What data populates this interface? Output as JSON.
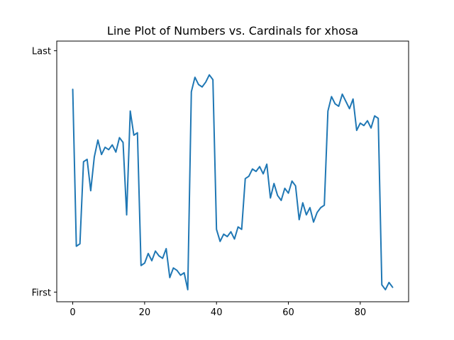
{
  "chart_data": {
    "type": "line",
    "title": "Line Plot of Numbers vs. Cardinals for xhosa",
    "xlabel": "",
    "ylabel": "",
    "xlim": [
      -4.45,
      93.45
    ],
    "ylim": [
      -0.04,
      1.04
    ],
    "x_ticks": [
      0,
      20,
      40,
      60,
      80
    ],
    "y_ticks": [
      {
        "value": 0,
        "label": "First"
      },
      {
        "value": 1,
        "label": "Last"
      }
    ],
    "grid": false,
    "color": "#1f77b4",
    "series": [
      {
        "x": [
          0,
          1,
          2,
          3,
          4,
          5,
          6,
          7,
          8,
          9,
          10,
          11,
          12,
          13,
          14,
          15,
          16,
          17,
          18,
          19,
          20,
          21,
          22,
          23,
          24,
          25,
          26,
          27,
          28,
          29,
          30,
          31,
          32,
          33,
          34,
          35,
          36,
          37,
          38,
          39,
          40,
          41,
          42,
          43,
          44,
          45,
          46,
          47,
          48,
          49,
          50,
          51,
          52,
          53,
          54,
          55,
          56,
          57,
          58,
          59,
          60,
          61,
          62,
          63,
          64,
          65,
          66,
          67,
          68,
          69,
          70,
          71,
          72,
          73,
          74,
          75,
          76,
          77,
          78,
          79,
          80,
          81,
          82,
          83,
          84,
          85,
          86,
          87,
          88,
          89
        ],
        "values": [
          0.84,
          0.19,
          0.2,
          0.54,
          0.55,
          0.42,
          0.56,
          0.63,
          0.57,
          0.6,
          0.59,
          0.61,
          0.58,
          0.64,
          0.62,
          0.32,
          0.75,
          0.65,
          0.66,
          0.11,
          0.12,
          0.16,
          0.13,
          0.17,
          0.15,
          0.14,
          0.18,
          0.06,
          0.1,
          0.09,
          0.07,
          0.08,
          0.01,
          0.83,
          0.89,
          0.86,
          0.85,
          0.87,
          0.9,
          0.88,
          0.26,
          0.21,
          0.24,
          0.23,
          0.25,
          0.22,
          0.27,
          0.26,
          0.47,
          0.48,
          0.51,
          0.5,
          0.52,
          0.49,
          0.53,
          0.39,
          0.45,
          0.4,
          0.38,
          0.43,
          0.41,
          0.46,
          0.44,
          0.3,
          0.37,
          0.32,
          0.35,
          0.29,
          0.33,
          0.35,
          0.36,
          0.75,
          0.81,
          0.78,
          0.77,
          0.82,
          0.79,
          0.76,
          0.8,
          0.67,
          0.7,
          0.69,
          0.71,
          0.68,
          0.73,
          0.72,
          0.03,
          0.01,
          0.04,
          0.02
        ]
      }
    ]
  }
}
